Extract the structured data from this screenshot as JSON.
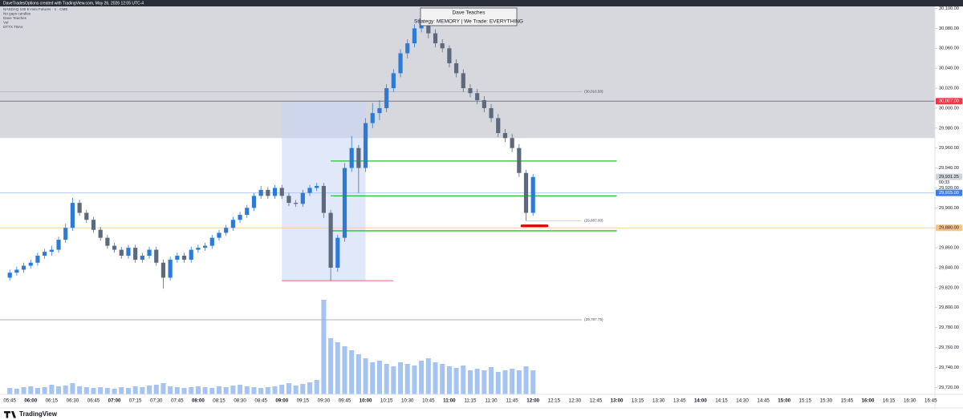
{
  "header": {
    "caption": "DaveTradesOptions created with TradingView.com, May 26, 2026 12:05 UTC-4",
    "legend": [
      "NASDAQ 100 E-mini Futures · 1 · CME",
      "No gaps candles",
      "Dave Teaches",
      "Vol",
      "DTTX TBAs"
    ]
  },
  "overlay": {
    "title": "Dave Teaches",
    "subtitle": "Strategy: MEMORY | We Trade: EVERYTHING"
  },
  "footer": {
    "brand": "TradingView"
  },
  "chart_data": {
    "type": "candlestick",
    "x": [
      "05:45",
      "05:50",
      "05:55",
      "06:00",
      "06:05",
      "06:10",
      "06:15",
      "06:20",
      "06:25",
      "06:30",
      "06:35",
      "06:40",
      "06:45",
      "06:50",
      "06:55",
      "07:00",
      "07:05",
      "07:10",
      "07:15",
      "07:20",
      "07:25",
      "07:30",
      "07:35",
      "07:40",
      "07:45",
      "07:50",
      "07:55",
      "08:00",
      "08:05",
      "08:10",
      "08:15",
      "08:20",
      "08:25",
      "08:30",
      "08:35",
      "08:40",
      "08:45",
      "08:50",
      "08:55",
      "09:00",
      "09:05",
      "09:10",
      "09:15",
      "09:20",
      "09:25",
      "09:30",
      "09:35",
      "09:40",
      "09:45",
      "09:50",
      "09:55",
      "10:00",
      "10:05",
      "10:10",
      "10:15",
      "10:20",
      "10:25",
      "10:30",
      "10:35",
      "10:40",
      "10:45",
      "10:50",
      "10:55",
      "11:00",
      "11:05",
      "11:10",
      "11:15",
      "11:20",
      "11:25",
      "11:30",
      "11:35",
      "11:40",
      "11:45",
      "11:50",
      "11:55",
      "12:00"
    ],
    "ohlc": [
      [
        29830,
        29838,
        29827,
        29835
      ],
      [
        29835,
        29841,
        29832,
        29838
      ],
      [
        29838,
        29845,
        29835,
        29842
      ],
      [
        29842,
        29848,
        29839,
        29845
      ],
      [
        29845,
        29855,
        29842,
        29852
      ],
      [
        29852,
        29859,
        29849,
        29856
      ],
      [
        29856,
        29862,
        29852,
        29858
      ],
      [
        29858,
        29871,
        29855,
        29868
      ],
      [
        29868,
        29884,
        29865,
        29880
      ],
      [
        29880,
        29910,
        29877,
        29905
      ],
      [
        29905,
        29908,
        29892,
        29895
      ],
      [
        29895,
        29898,
        29885,
        29888
      ],
      [
        29888,
        29891,
        29875,
        29878
      ],
      [
        29878,
        29881,
        29867,
        29870
      ],
      [
        29870,
        29873,
        29859,
        29862
      ],
      [
        29862,
        29865,
        29855,
        29858
      ],
      [
        29858,
        29861,
        29849,
        29852
      ],
      [
        29852,
        29863,
        29849,
        29860
      ],
      [
        29860,
        29863,
        29845,
        29848
      ],
      [
        29848,
        29855,
        29845,
        29852
      ],
      [
        29852,
        29861,
        29849,
        29858
      ],
      [
        29858,
        29861,
        29842,
        29845
      ],
      [
        29845,
        29848,
        29819,
        29830
      ],
      [
        29830,
        29851,
        29827,
        29848
      ],
      [
        29848,
        29855,
        29845,
        29852
      ],
      [
        29852,
        29855,
        29845,
        29848
      ],
      [
        29848,
        29861,
        29845,
        29858
      ],
      [
        29858,
        29863,
        29855,
        29860
      ],
      [
        29860,
        29865,
        29857,
        29862
      ],
      [
        29862,
        29873,
        29859,
        29870
      ],
      [
        29870,
        29878,
        29867,
        29875
      ],
      [
        29875,
        29883,
        29872,
        29880
      ],
      [
        29880,
        29891,
        29877,
        29888
      ],
      [
        29888,
        29896,
        29885,
        29893
      ],
      [
        29893,
        29903,
        29890,
        29900
      ],
      [
        29900,
        29915,
        29897,
        29912
      ],
      [
        29912,
        29922,
        29909,
        29918
      ],
      [
        29918,
        29921,
        29909,
        29912
      ],
      [
        29912,
        29923,
        29909,
        29920
      ],
      [
        29920,
        29923,
        29909,
        29912
      ],
      [
        29912,
        29915,
        29902,
        29905
      ],
      [
        29905,
        29908,
        29901,
        29904
      ],
      [
        29904,
        29918,
        29901,
        29915
      ],
      [
        29915,
        29923,
        29912,
        29920
      ],
      [
        29920,
        29925,
        29917,
        29922
      ],
      [
        29922,
        29925,
        29890,
        29895
      ],
      [
        29895,
        29898,
        29827,
        29840
      ],
      [
        29840,
        29873,
        29836,
        29870
      ],
      [
        29870,
        29945,
        29866,
        29940
      ],
      [
        29940,
        29972,
        29936,
        29960
      ],
      [
        29960,
        29963,
        29915,
        29940
      ],
      [
        29940,
        29990,
        29936,
        29985
      ],
      [
        29985,
        30005,
        29980,
        29995
      ],
      [
        29995,
        30008,
        29988,
        30000
      ],
      [
        30000,
        30024,
        29996,
        30020
      ],
      [
        30020,
        30039,
        30016,
        30035
      ],
      [
        30035,
        30059,
        30031,
        30055
      ],
      [
        30055,
        30069,
        30050,
        30065
      ],
      [
        30065,
        30084,
        30061,
        30080
      ],
      [
        30080,
        30101,
        30076,
        30090
      ],
      [
        30090,
        30094,
        30070,
        30075
      ],
      [
        30075,
        30079,
        30061,
        30065
      ],
      [
        30065,
        30069,
        30056,
        30060
      ],
      [
        30060,
        30063,
        30041,
        30045
      ],
      [
        30045,
        30049,
        30031,
        30035
      ],
      [
        30035,
        30039,
        30016,
        30020
      ],
      [
        30020,
        30024,
        30011,
        30015
      ],
      [
        30015,
        30019,
        30004,
        30008
      ],
      [
        30008,
        30012,
        29996,
        30000
      ],
      [
        30000,
        30004,
        29986,
        29990
      ],
      [
        29990,
        29994,
        29971,
        29975
      ],
      [
        29975,
        29979,
        29966,
        29970
      ],
      [
        29970,
        29974,
        29956,
        29960
      ],
      [
        29960,
        29964,
        29931,
        29935
      ],
      [
        29935,
        29938,
        29887,
        29895
      ],
      [
        29895,
        29934,
        29892,
        29931
      ]
    ],
    "up_color": "#2e7bd6",
    "down_color": "#5d6a7e",
    "volume": [
      8,
      7,
      9,
      10,
      8,
      9,
      12,
      10,
      11,
      14,
      10,
      9,
      8,
      9,
      8,
      7,
      9,
      8,
      10,
      9,
      11,
      12,
      14,
      10,
      9,
      8,
      9,
      10,
      9,
      8,
      10,
      9,
      11,
      12,
      10,
      9,
      8,
      9,
      10,
      12,
      14,
      11,
      13,
      15,
      18,
      118,
      70,
      65,
      60,
      55,
      50,
      45,
      40,
      42,
      38,
      35,
      40,
      38,
      36,
      42,
      45,
      40,
      38,
      35,
      33,
      36,
      30,
      32,
      30,
      34,
      28,
      30,
      32,
      30,
      35,
      30
    ],
    "volume_color": "#8fb5ef",
    "xlim": [
      "05:38",
      "16:48"
    ],
    "xticks": [
      "05:45",
      "06:00",
      "06:15",
      "06:30",
      "06:45",
      "07:00",
      "07:15",
      "07:30",
      "07:45",
      "08:00",
      "08:15",
      "08:30",
      "08:45",
      "09:00",
      "09:15",
      "09:30",
      "09:45",
      "10:00",
      "10:15",
      "10:30",
      "10:45",
      "11:00",
      "11:15",
      "11:30",
      "11:45",
      "12:00",
      "12:15",
      "12:30",
      "12:45",
      "13:00",
      "13:15",
      "13:30",
      "13:45",
      "14:00",
      "14:15",
      "14:30",
      "14:45",
      "15:00",
      "15:15",
      "15:30",
      "15:45",
      "16:00",
      "16:15",
      "16:30",
      "16:45"
    ],
    "ylim": [
      29713,
      30102
    ],
    "yticks": [
      {
        "value": 29720,
        "label": "29,720.00"
      },
      {
        "value": 29740,
        "label": "29,740.00"
      },
      {
        "value": 29760,
        "label": "29,760.00"
      },
      {
        "value": 29780,
        "label": "29,780.00"
      },
      {
        "value": 29800,
        "label": "29,800.00"
      },
      {
        "value": 29820,
        "label": "29,820.00"
      },
      {
        "value": 29840,
        "label": "29,840.00"
      },
      {
        "value": 29860,
        "label": "29,860.00"
      },
      {
        "value": 29880,
        "label": "29,880.00"
      },
      {
        "value": 29900,
        "label": "29,900.00"
      },
      {
        "value": 29920,
        "label": "29,920.00"
      },
      {
        "value": 29940,
        "label": "29,940.00"
      },
      {
        "value": 29960,
        "label": "29,960.00"
      },
      {
        "value": 29980,
        "label": "29,980.00"
      },
      {
        "value": 30000,
        "label": "30,000.00"
      },
      {
        "value": 30020,
        "label": "30,020.00"
      },
      {
        "value": 30040,
        "label": "30,040.00"
      },
      {
        "value": 30060,
        "label": "30,060.00"
      },
      {
        "value": 30080,
        "label": "30,080.00"
      },
      {
        "value": 30100,
        "label": "30,100.00"
      }
    ],
    "resistance_zone": {
      "from": 29970,
      "color": "#d6d8de"
    },
    "box": {
      "x": [
        "09:00",
        "10:00"
      ],
      "y": [
        29827,
        30007
      ],
      "color": "#c9d6f5"
    },
    "levels": [
      {
        "value": 30016.5,
        "to": "12:35",
        "color": "#b2b5be",
        "label": "(30,016.50)"
      },
      {
        "value": 30007,
        "color": "#6a6d78"
      },
      {
        "value": 29915,
        "color": "#a9c4f0"
      },
      {
        "value": 29880,
        "color": "#f6c48a"
      },
      {
        "value": 29887,
        "from": "11:55",
        "to": "12:35",
        "color": "#f6c48a",
        "label": "(29,887.00)"
      },
      {
        "value": 29787.75,
        "to": "12:35",
        "color": "#9598a1",
        "label": "(29,787.75)"
      },
      {
        "value": 29827,
        "from": "09:00",
        "to": "10:20",
        "color": "#f23645"
      },
      {
        "value": 29947,
        "from": "09:35",
        "to": "13:00",
        "color": "#22c32e"
      },
      {
        "value": 29912,
        "from": "09:35",
        "to": "13:00",
        "color": "#22c32e"
      },
      {
        "value": 29877,
        "from": "09:35",
        "to": "13:00",
        "color": "#22c32e"
      }
    ],
    "highlight": {
      "value": 29882,
      "from": "11:52",
      "to": "12:10",
      "color": "#e00000"
    },
    "tags": [
      {
        "value": 30007,
        "label": "30,007.00",
        "color": "#f23645",
        "text_color": "#ffffff"
      },
      {
        "value": 29931.25,
        "label": "29,931.25",
        "color": "#d1d4dc",
        "text_color": "#131722"
      },
      {
        "value": 29915,
        "label": "29,915.00",
        "color": "#3d7eea",
        "text_color": "#ffffff"
      },
      {
        "value": 29880,
        "label": "29,880.00",
        "color": "#f6c48a",
        "text_color": "#131722"
      }
    ],
    "countdown": "00:33",
    "grid": false
  }
}
